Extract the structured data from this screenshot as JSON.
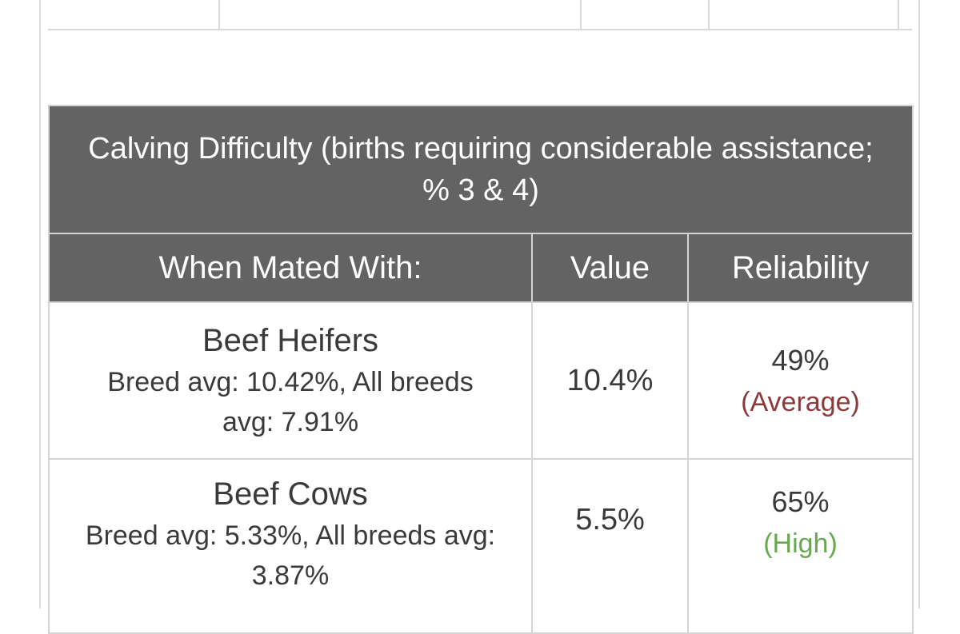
{
  "table": {
    "title": "Calving Difficulty (births requiring considerable assistance; % 3 & 4)",
    "headers": {
      "mated_with": "When Mated With:",
      "value": "Value",
      "reliability": "Reliability"
    },
    "rows": [
      {
        "name": "Beef Heifers",
        "avg": "Breed avg: 10.42%, All breeds avg: 7.91%",
        "value": "10.4%",
        "reliability_pct": "49%",
        "reliability_label": "(Average)"
      },
      {
        "name": "Beef Cows",
        "avg": "Breed avg: 5.33%, All breeds avg: 3.87%",
        "value": "5.5%",
        "reliability_pct": "65%",
        "reliability_label": "(High)"
      }
    ]
  },
  "colors": {
    "header_bg": "#636363",
    "reliability_average": "#8b3a3a",
    "reliability_high": "#6aa84f"
  }
}
